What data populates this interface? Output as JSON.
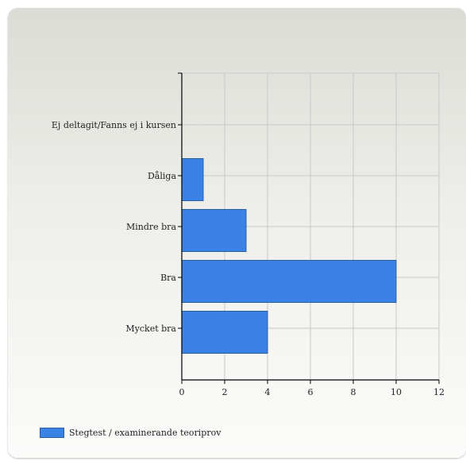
{
  "chart_data": {
    "type": "bar",
    "orientation": "horizontal",
    "categories": [
      "Ej deltagit/Fanns ej i kursen",
      "Dåliga",
      "Mindre bra",
      "Bra",
      "Mycket bra"
    ],
    "series": [
      {
        "name": "Stegtest / examinerande teoriprov",
        "values": [
          0,
          1,
          3,
          10,
          4
        ],
        "color": "#3b82e6"
      }
    ],
    "xlim": [
      0,
      12
    ],
    "xticks": [
      0,
      2,
      4,
      6,
      8,
      10,
      12
    ],
    "grid": true,
    "legend_position": "bottom-left"
  }
}
